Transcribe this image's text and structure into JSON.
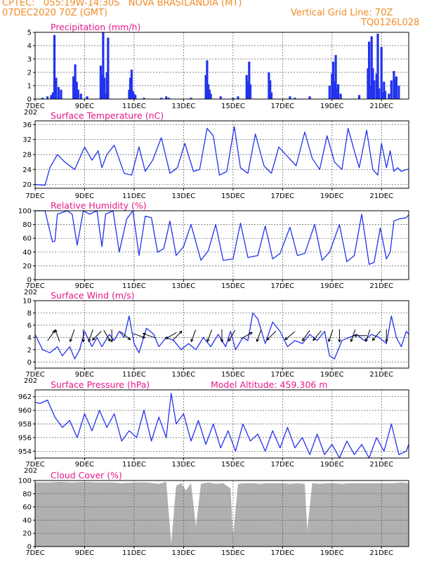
{
  "header": {
    "station": "CPTEC:   055:19W-14:30S   NOVA BRASILANDIA (MT)",
    "run": "07DEC2020 70Z (GMT)",
    "grid_note": "Vertical Grid Line: 70Z",
    "model_code": "TQ0126L028"
  },
  "colors": {
    "header": "#f08c28",
    "title": "#e8178c",
    "series": "#2233ee",
    "cloud": "#b0b0b0"
  },
  "x_axis": {
    "ticks": [
      "7DEC",
      "9DEC",
      "11DEC",
      "13DEC",
      "15DEC",
      "17DEC",
      "19DEC",
      "21DEC"
    ],
    "tick_days": [
      7,
      9,
      11,
      13,
      15,
      17,
      19,
      21
    ],
    "range_days": [
      7,
      22.1
    ],
    "clipped_year_label": "202"
  },
  "chart_data": [
    {
      "type": "bar",
      "title": "Precipitation  (mm/h)",
      "ylim": [
        0,
        5
      ],
      "yticks": [
        0,
        1,
        2,
        3,
        4,
        5
      ],
      "x": [
        7.3,
        7.5,
        7.65,
        7.72,
        7.78,
        7.85,
        7.95,
        8.05,
        8.55,
        8.62,
        8.68,
        8.74,
        8.85,
        9.1,
        9.65,
        9.7,
        9.75,
        9.8,
        9.85,
        9.9,
        9.95,
        10.8,
        10.85,
        10.9,
        10.95,
        11.0,
        11.05,
        11.4,
        12.1,
        12.3,
        12.4,
        13.3,
        13.9,
        13.95,
        14.0,
        14.05,
        14.1,
        14.5,
        15.0,
        15.2,
        15.55,
        15.6,
        15.65,
        15.7,
        16.45,
        16.5,
        16.55,
        17.3,
        17.5,
        18.1,
        18.9,
        19.0,
        19.05,
        19.1,
        19.15,
        19.2,
        19.25,
        19.35,
        20.1,
        20.45,
        20.5,
        20.55,
        20.6,
        20.65,
        20.7,
        20.8,
        20.85,
        20.9,
        21.0,
        21.05,
        21.1,
        21.15,
        21.3,
        21.4,
        21.5,
        21.55,
        21.6,
        21.7
      ],
      "values": [
        0.1,
        0.2,
        0.3,
        0.5,
        4.8,
        1.6,
        0.9,
        0.7,
        1.7,
        2.6,
        1.3,
        0.7,
        0.4,
        0.2,
        2.5,
        1.8,
        5.0,
        1.6,
        0.4,
        2.0,
        4.6,
        0.7,
        1.6,
        2.2,
        0.6,
        0.4,
        0.3,
        0.1,
        0.1,
        0.2,
        0.1,
        0.1,
        1.8,
        2.9,
        1.1,
        0.7,
        0.4,
        0.2,
        0.1,
        0.2,
        1.8,
        1.3,
        2.8,
        1.1,
        2.0,
        1.4,
        0.5,
        0.2,
        0.1,
        0.2,
        1.0,
        1.9,
        2.8,
        1.3,
        3.3,
        0.8,
        1.1,
        0.4,
        0.3,
        2.3,
        4.3,
        1.0,
        4.7,
        2.3,
        1.4,
        1.9,
        4.9,
        0.8,
        3.9,
        0.5,
        1.3,
        0.6,
        0.4,
        1.4,
        2.1,
        1.5,
        1.7,
        1.0
      ]
    },
    {
      "type": "line",
      "title": "Surface Temperature (nC)",
      "ylim": [
        19,
        37
      ],
      "yticks": [
        20,
        24,
        28,
        32,
        36
      ],
      "x": [
        7.0,
        7.4,
        7.6,
        7.9,
        8.2,
        8.6,
        9.0,
        9.3,
        9.55,
        9.7,
        9.9,
        10.2,
        10.6,
        10.9,
        11.2,
        11.45,
        11.75,
        12.1,
        12.45,
        12.75,
        13.05,
        13.4,
        13.65,
        13.95,
        14.2,
        14.45,
        14.75,
        15.05,
        15.3,
        15.6,
        15.9,
        16.25,
        16.55,
        16.85,
        17.2,
        17.55,
        17.9,
        18.2,
        18.5,
        18.8,
        19.1,
        19.4,
        19.65,
        19.9,
        20.1,
        20.4,
        20.65,
        20.85,
        21.0,
        21.2,
        21.35,
        21.5,
        21.65,
        21.8,
        22.0,
        22.1
      ],
      "values": [
        20.0,
        19.8,
        24.5,
        28.0,
        26.0,
        24.0,
        30.0,
        26.5,
        29.0,
        24.5,
        28.0,
        30.5,
        23.0,
        22.5,
        30.0,
        23.5,
        26.5,
        32.5,
        23.0,
        24.5,
        31.0,
        23.5,
        24.0,
        35.0,
        33.0,
        22.5,
        23.5,
        35.5,
        24.5,
        23.0,
        33.5,
        25.0,
        23.0,
        30.0,
        27.5,
        25.0,
        34.0,
        27.0,
        24.0,
        33.0,
        26.0,
        24.0,
        35.0,
        29.0,
        24.5,
        34.5,
        24.0,
        22.5,
        31.0,
        24.5,
        29.0,
        23.5,
        24.5,
        23.5,
        24.0,
        24.0
      ]
    },
    {
      "type": "line",
      "title": "Relative Humidity (%)",
      "ylim": [
        0,
        100
      ],
      "yticks": [
        0,
        20,
        40,
        60,
        80,
        100
      ],
      "x": [
        7.0,
        7.4,
        7.7,
        7.8,
        7.9,
        8.3,
        8.5,
        8.7,
        8.95,
        9.2,
        9.5,
        9.7,
        9.85,
        10.15,
        10.4,
        10.7,
        10.95,
        11.2,
        11.45,
        11.7,
        11.95,
        12.2,
        12.45,
        12.7,
        13.0,
        13.3,
        13.7,
        14.0,
        14.3,
        14.6,
        15.0,
        15.3,
        15.6,
        16.0,
        16.3,
        16.6,
        16.9,
        17.3,
        17.6,
        17.9,
        18.3,
        18.6,
        18.9,
        19.3,
        19.6,
        19.9,
        20.2,
        20.5,
        20.7,
        20.95,
        21.2,
        21.35,
        21.5,
        21.7,
        22.0,
        22.1
      ],
      "values": [
        100,
        100,
        55,
        56,
        95,
        100,
        95,
        50,
        100,
        95,
        100,
        48,
        95,
        100,
        40,
        88,
        100,
        35,
        92,
        90,
        40,
        45,
        85,
        35,
        48,
        80,
        28,
        42,
        80,
        28,
        30,
        82,
        32,
        35,
        78,
        30,
        38,
        76,
        35,
        38,
        80,
        28,
        40,
        80,
        26,
        35,
        95,
        22,
        25,
        75,
        30,
        40,
        85,
        88,
        90,
        94
      ]
    },
    {
      "type": "line",
      "title": "Surface Wind (m/s)",
      "ylim": [
        -1,
        10
      ],
      "yticks": [
        0,
        2,
        4,
        6,
        8,
        10
      ],
      "x": [
        7.0,
        7.3,
        7.6,
        7.9,
        8.1,
        8.4,
        8.6,
        8.8,
        9.0,
        9.3,
        9.5,
        9.7,
        10.0,
        10.2,
        10.4,
        10.6,
        10.8,
        11.0,
        11.2,
        11.5,
        11.8,
        12.0,
        12.3,
        12.6,
        12.9,
        13.2,
        13.5,
        13.8,
        14.1,
        14.4,
        14.7,
        14.9,
        15.1,
        15.4,
        15.6,
        15.8,
        16.0,
        16.3,
        16.6,
        16.9,
        17.2,
        17.5,
        17.8,
        18.1,
        18.4,
        18.7,
        18.9,
        19.1,
        19.4,
        19.7,
        20.0,
        20.3,
        20.6,
        20.9,
        21.2,
        21.4,
        21.6,
        21.8,
        22.0,
        22.1
      ],
      "values": [
        4.5,
        2.0,
        1.5,
        2.5,
        1.0,
        2.5,
        0.5,
        2.0,
        5.0,
        2.5,
        4.0,
        2.5,
        4.5,
        3.5,
        5.0,
        4.0,
        7.5,
        3.0,
        1.5,
        5.5,
        4.5,
        2.5,
        4.0,
        3.5,
        2.0,
        3.0,
        2.0,
        4.0,
        2.5,
        4.5,
        2.5,
        5.0,
        2.0,
        4.0,
        3.5,
        8.0,
        7.0,
        3.0,
        6.5,
        5.0,
        2.5,
        3.5,
        3.0,
        4.5,
        3.5,
        5.0,
        1.0,
        0.5,
        3.5,
        4.0,
        4.5,
        3.5,
        4.5,
        4.0,
        3.0,
        7.5,
        4.0,
        2.5,
        5.0,
        4.5
      ],
      "arrows": [
        {
          "x": 7.65,
          "dir": 35
        },
        {
          "x": 7.9,
          "dir": 340
        },
        {
          "x": 8.5,
          "dir": 200
        },
        {
          "x": 8.95,
          "dir": 180
        },
        {
          "x": 9.25,
          "dir": 200
        },
        {
          "x": 9.5,
          "dir": 225
        },
        {
          "x": 9.9,
          "dir": 150
        },
        {
          "x": 10.1,
          "dir": 180
        },
        {
          "x": 10.65,
          "dir": 130
        },
        {
          "x": 11.2,
          "dir": 110
        },
        {
          "x": 11.6,
          "dir": 290
        },
        {
          "x": 12.5,
          "dir": 240
        },
        {
          "x": 12.75,
          "dir": 45
        },
        {
          "x": 13.4,
          "dir": 200
        },
        {
          "x": 14.05,
          "dir": 200
        },
        {
          "x": 14.55,
          "dir": 180
        },
        {
          "x": 14.95,
          "dir": 210
        },
        {
          "x": 15.55,
          "dir": 60
        },
        {
          "x": 16.05,
          "dir": 200
        },
        {
          "x": 16.55,
          "dir": 225
        },
        {
          "x": 17.3,
          "dir": 230
        },
        {
          "x": 17.95,
          "dir": 215
        },
        {
          "x": 18.4,
          "dir": 220
        },
        {
          "x": 18.95,
          "dir": 200
        },
        {
          "x": 19.3,
          "dir": 180
        },
        {
          "x": 19.85,
          "dir": 200
        },
        {
          "x": 20.15,
          "dir": 270
        },
        {
          "x": 20.45,
          "dir": 200
        },
        {
          "x": 20.8,
          "dir": 220
        },
        {
          "x": 21.2,
          "dir": 180
        }
      ]
    },
    {
      "type": "line",
      "title": "Surface Pressure (hPa)",
      "annotation": "Model Altitude: 459.306 m",
      "ylim": [
        953,
        963
      ],
      "yticks": [
        954,
        956,
        958,
        960,
        962
      ],
      "x": [
        7.0,
        7.2,
        7.5,
        7.8,
        8.1,
        8.4,
        8.7,
        9.0,
        9.3,
        9.6,
        9.9,
        10.2,
        10.5,
        10.8,
        11.1,
        11.4,
        11.7,
        12.0,
        12.3,
        12.5,
        12.7,
        13.0,
        13.3,
        13.6,
        13.9,
        14.2,
        14.5,
        14.8,
        15.1,
        15.4,
        15.7,
        16.0,
        16.3,
        16.6,
        16.9,
        17.2,
        17.5,
        17.8,
        18.1,
        18.4,
        18.7,
        19.0,
        19.3,
        19.6,
        19.9,
        20.2,
        20.5,
        20.8,
        21.1,
        21.4,
        21.7,
        22.0,
        22.1
      ],
      "values": [
        961.2,
        961.0,
        961.5,
        959.0,
        957.5,
        958.5,
        956.0,
        959.5,
        957.0,
        960.0,
        957.5,
        959.5,
        955.5,
        957.0,
        956.0,
        960.0,
        955.5,
        959.0,
        956.0,
        962.5,
        958.0,
        959.5,
        955.5,
        958.5,
        955.0,
        958.0,
        954.5,
        957.0,
        954.0,
        958.0,
        955.5,
        956.5,
        954.0,
        957.0,
        954.5,
        957.5,
        954.5,
        956.0,
        953.5,
        956.5,
        953.5,
        955.0,
        953.0,
        955.5,
        953.5,
        955.0,
        953.0,
        956.0,
        954.0,
        958.0,
        953.5,
        954.0,
        955.0
      ]
    },
    {
      "type": "area",
      "title": "Cloud Cover (%)",
      "ylim": [
        0,
        100
      ],
      "yticks": [
        0,
        20,
        40,
        60,
        80,
        100
      ],
      "x": [
        7.0,
        7.3,
        7.6,
        8.0,
        8.5,
        9.0,
        9.5,
        10.0,
        10.5,
        11.0,
        11.5,
        12.0,
        12.3,
        12.5,
        12.7,
        12.9,
        13.1,
        13.3,
        13.5,
        13.7,
        14.0,
        14.3,
        14.6,
        14.9,
        15.0,
        15.2,
        15.5,
        15.8,
        16.1,
        16.4,
        16.7,
        17.0,
        17.3,
        17.6,
        17.9,
        18.0,
        18.2,
        18.5,
        18.8,
        19.1,
        19.4,
        19.7,
        20.0,
        20.3,
        20.6,
        20.9,
        21.2,
        21.5,
        21.8,
        22.1
      ],
      "values": [
        97,
        97,
        97,
        98,
        97,
        98,
        97,
        97,
        96,
        97,
        97,
        95,
        98,
        5,
        92,
        96,
        85,
        96,
        30,
        95,
        97,
        95,
        96,
        88,
        15,
        95,
        96,
        96,
        95,
        96,
        96,
        96,
        95,
        96,
        95,
        25,
        96,
        95,
        96,
        96,
        95,
        96,
        96,
        96,
        96,
        96,
        96,
        96,
        97,
        96
      ]
    }
  ]
}
